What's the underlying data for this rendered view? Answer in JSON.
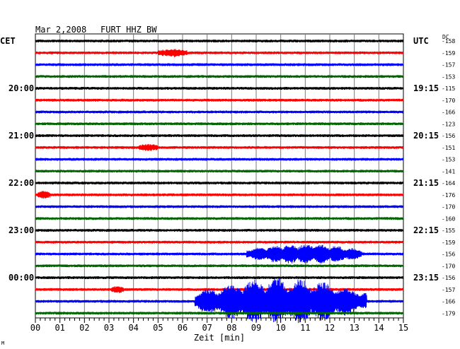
{
  "header": {
    "date": "Mar 2,2008",
    "station": "FURT HHZ BW",
    "left_zone": "CET",
    "right_zone": "UTC",
    "dc_label": "DC"
  },
  "chart_data": {
    "type": "line",
    "title": "Mar 2,2008   FURT HHZ BW",
    "xlabel": "Zeit [min]",
    "xlim": [
      0,
      15
    ],
    "x_ticks": [
      "00",
      "01",
      "02",
      "03",
      "04",
      "05",
      "06",
      "07",
      "08",
      "09",
      "10",
      "11",
      "12",
      "13",
      "14",
      "15"
    ],
    "grid": true,
    "trace_colors": [
      "#000000",
      "#ff0000",
      "#0000ff",
      "#006400"
    ],
    "left_time_labels": [
      {
        "row": 4,
        "label": "20:00"
      },
      {
        "row": 8,
        "label": "21:00"
      },
      {
        "row": 12,
        "label": "22:00"
      },
      {
        "row": 16,
        "label": "23:00"
      },
      {
        "row": 20,
        "label": "00:00"
      }
    ],
    "right_time_labels": [
      {
        "row": 0,
        "label": "UTC"
      },
      {
        "row": 4,
        "label": "19:15"
      },
      {
        "row": 8,
        "label": "20:15"
      },
      {
        "row": 12,
        "label": "21:15"
      },
      {
        "row": 16,
        "label": "22:15"
      },
      {
        "row": 20,
        "label": "23:15"
      }
    ],
    "dc_offsets": [
      "-158",
      "-159",
      "-157",
      "-153",
      "-115",
      "-170",
      "-166",
      "-123",
      "-156",
      "-151",
      "-153",
      "-141",
      "-164",
      "-176",
      "-170",
      "-160",
      "-155",
      "-159",
      "-156",
      "-170",
      "-156",
      "-157",
      "-166",
      "-179"
    ],
    "events": [
      {
        "row": 1,
        "start_min": 5.0,
        "end_min": 6.2,
        "peak": 0.55
      },
      {
        "row": 9,
        "start_min": 4.2,
        "end_min": 5.0,
        "peak": 0.5
      },
      {
        "row": 13,
        "start_min": 0.1,
        "end_min": 0.6,
        "peak": 0.6
      },
      {
        "row": 18,
        "start_min": 8.6,
        "end_min": 13.3,
        "peak": 1.6
      },
      {
        "row": 21,
        "start_min": 3.1,
        "end_min": 3.6,
        "peak": 0.5
      },
      {
        "row": 22,
        "start_min": 6.5,
        "end_min": 13.5,
        "peak": 3.8
      }
    ]
  }
}
